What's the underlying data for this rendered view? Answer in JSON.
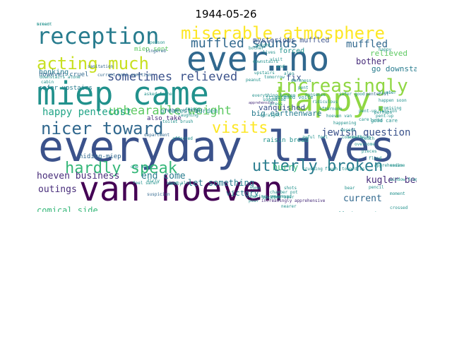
{
  "title": "1944-05-26",
  "colors": {
    "dark_purple": "#440154",
    "purple": "#472c7a",
    "indigo": "#3b528b",
    "blue": "#31688e",
    "teal_blue": "#287c8e",
    "teal": "#21918c",
    "green_teal": "#20a486",
    "green": "#35b779",
    "light_green": "#5ec962",
    "lime": "#90d743",
    "yellow_green": "#c8e020",
    "yellow": "#fde725"
  },
  "words": [
    {
      "text": "everyday lives",
      "color": "indigo"
    },
    {
      "text": "van hoeven",
      "color": "dark_purple"
    },
    {
      "text": "miep came",
      "color": "teal"
    },
    {
      "text": "ever…no",
      "color": "blue"
    },
    {
      "text": "happy.",
      "color": "lime"
    },
    {
      "text": "reception",
      "color": "teal_blue"
    },
    {
      "text": "miserable atmosphere",
      "color": "yellow"
    },
    {
      "text": "acting much",
      "color": "yellow_green"
    },
    {
      "text": "increasingly",
      "color": "lime"
    },
    {
      "text": "nicer toward",
      "color": "blue"
    },
    {
      "text": "visits",
      "color": "yellow"
    },
    {
      "text": "utterly broken",
      "color": "teal_blue"
    },
    {
      "text": "hardly speak",
      "color": "green"
    },
    {
      "text": "muffled sounds",
      "color": "blue"
    },
    {
      "text": "sometimes relieved",
      "color": "indigo"
    },
    {
      "text": "unbearable weight",
      "color": "light_green"
    },
    {
      "text": "happy pentecost",
      "color": "green_teal"
    },
    {
      "text": "jewish question",
      "color": "indigo"
    },
    {
      "text": "hoeven business",
      "color": "purple"
    },
    {
      "text": "end come",
      "color": "teal_blue"
    },
    {
      "text": "hurry",
      "color": "green"
    },
    {
      "text": "kugler bear",
      "color": "purple"
    },
    {
      "text": "current",
      "color": "blue"
    },
    {
      "text": "outings",
      "color": "purple"
    },
    {
      "text": "let something",
      "color": "teal_blue"
    },
    {
      "text": "muffled",
      "color": "blue"
    },
    {
      "text": "mysterious muffled",
      "color": "indigo"
    },
    {
      "text": "fix",
      "color": "indigo"
    },
    {
      "text": "bother",
      "color": "purple"
    },
    {
      "text": "big earthenware",
      "color": "teal_blue"
    },
    {
      "text": "dirty water",
      "color": "teal"
    },
    {
      "text": "comical side",
      "color": "green"
    },
    {
      "text": "raisin",
      "color": "teal"
    },
    {
      "text": "sent us",
      "color": "teal_blue"
    },
    {
      "text": "trickle",
      "color": "light_green"
    },
    {
      "text": "cabarets",
      "color": "light_green"
    },
    {
      "text": "horns",
      "color": "teal_blue"
    },
    {
      "text": "sanitation department",
      "color": "teal_blue"
    },
    {
      "text": "quickly taken",
      "color": "teal"
    },
    {
      "text": "mocking us",
      "color": "teal_blue"
    },
    {
      "text": "go downstairs",
      "color": "teal_blue"
    },
    {
      "text": "relieved",
      "color": "light_green"
    },
    {
      "text": "forced",
      "color": "teal"
    },
    {
      "text": "vanquished",
      "color": "indigo"
    },
    {
      "text": "honking",
      "color": "teal_blue"
    },
    {
      "text": "miep sent",
      "color": "light_green"
    },
    {
      "text": "however cruel",
      "color": "blue"
    },
    {
      "text": "safer upstairs",
      "color": "teal_blue"
    },
    {
      "text": "hiding-miep",
      "color": "blue"
    },
    {
      "text": "victory",
      "color": "teal_blue"
    },
    {
      "text": "also take",
      "color": "purple"
    },
    {
      "text": "greatest burden",
      "color": "teal"
    },
    {
      "text": "raisin bread",
      "color": "teal"
    },
    {
      "text": "good care",
      "color": "teal"
    },
    {
      "text": "pentecost",
      "color": "blue"
    },
    {
      "text": "sanitation",
      "color": "blue"
    },
    {
      "text": "current anti-semitism",
      "color": "blue"
    },
    {
      "text": "lingered",
      "color": "blue"
    },
    {
      "text": "asked father",
      "color": "teal"
    },
    {
      "text": "father straight",
      "color": "blue"
    },
    {
      "text": "toilet brush",
      "color": "teal"
    },
    {
      "text": "department",
      "color": "blue"
    },
    {
      "text": "one hand",
      "color": "teal"
    },
    {
      "text": "feel safer",
      "color": "teal"
    },
    {
      "text": "suspicion",
      "color": "blue"
    },
    {
      "text": "silent house",
      "color": "blue"
    },
    {
      "text": "increasingly apprehensive",
      "color": "purple"
    },
    {
      "text": "apprehension",
      "color": "purple"
    },
    {
      "text": "downstairs alone",
      "color": "teal"
    },
    {
      "text": "cabin",
      "color": "teal"
    },
    {
      "text": "laughing",
      "color": "teal"
    },
    {
      "text": "frightened voice",
      "color": "teal"
    },
    {
      "text": "straw",
      "color": "teal"
    },
    {
      "text": "flushed",
      "color": "teal"
    },
    {
      "text": "beer",
      "color": "teal"
    },
    {
      "text": "nearer",
      "color": "teal"
    },
    {
      "text": "promising",
      "color": "teal"
    },
    {
      "text": "happen soon",
      "color": "teal"
    },
    {
      "text": "plumber",
      "color": "teal"
    },
    {
      "text": "happy",
      "color": "teal"
    },
    {
      "text": "crushing",
      "color": "teal"
    },
    {
      "text": "awful feel",
      "color": "teal"
    },
    {
      "text": "tenth",
      "color": "teal"
    },
    {
      "text": "flush",
      "color": "teal"
    },
    {
      "text": "tomorrow",
      "color": "teal"
    },
    {
      "text": "perhaps",
      "color": "teal"
    },
    {
      "text": "deep also",
      "color": "teal"
    },
    {
      "text": "affected",
      "color": "teal"
    },
    {
      "text": "person",
      "color": "teal"
    },
    {
      "text": "pent-up",
      "color": "teal"
    },
    {
      "text": "pent-up tension",
      "color": "teal"
    },
    {
      "text": "press",
      "color": "teal"
    },
    {
      "text": "even worse",
      "color": "teal"
    },
    {
      "text": "safer",
      "color": "teal"
    },
    {
      "text": "lurks",
      "color": "teal"
    },
    {
      "text": "straight",
      "color": "teal"
    },
    {
      "text": "suggested",
      "color": "teal"
    },
    {
      "text": "sometimes relieved",
      "color": "teal"
    },
    {
      "text": "sewer",
      "color": "teal"
    },
    {
      "text": "chamber pot",
      "color": "teal"
    },
    {
      "text": "mocking",
      "color": "teal"
    },
    {
      "text": "toward us",
      "color": "teal"
    },
    {
      "text": "upstairs",
      "color": "teal"
    },
    {
      "text": "downstairs",
      "color": "teal"
    },
    {
      "text": "peanut",
      "color": "teal"
    },
    {
      "text": "bother",
      "color": "teal"
    },
    {
      "text": "everything happen",
      "color": "teal"
    },
    {
      "text": "come",
      "color": "teal"
    },
    {
      "text": "shots",
      "color": "teal"
    },
    {
      "text": "bear",
      "color": "teal"
    },
    {
      "text": "dirty",
      "color": "teal"
    },
    {
      "text": "hardly",
      "color": "teal"
    },
    {
      "text": "good",
      "color": "teal"
    },
    {
      "text": "care",
      "color": "teal"
    },
    {
      "text": "reason",
      "color": "teal"
    },
    {
      "text": "pencil",
      "color": "teal"
    },
    {
      "text": "pour",
      "color": "teal"
    },
    {
      "text": "apprehensive",
      "color": "teal"
    },
    {
      "text": "concerts",
      "color": "teal"
    },
    {
      "text": "sedan",
      "color": "teal"
    },
    {
      "text": "window frame",
      "color": "teal"
    },
    {
      "text": "moment",
      "color": "teal"
    },
    {
      "text": "crossed",
      "color": "teal"
    },
    {
      "text": "flood",
      "color": "teal"
    },
    {
      "text": "pieces",
      "color": "teal"
    },
    {
      "text": "overcome",
      "color": "teal"
    },
    {
      "text": "something",
      "color": "teal"
    },
    {
      "text": "decent",
      "color": "teal"
    },
    {
      "text": "happening",
      "color": "teal"
    },
    {
      "text": "hoeven van",
      "color": "teal"
    },
    {
      "text": "afternoon",
      "color": "teal"
    },
    {
      "text": "ridiculous",
      "color": "teal"
    },
    {
      "text": "nonsense",
      "color": "teal"
    },
    {
      "text": "pent",
      "color": "teal"
    },
    {
      "text": "darkness",
      "color": "teal"
    },
    {
      "text": "also",
      "color": "teal"
    },
    {
      "text": "end",
      "color": "teal"
    },
    {
      "text": "visit",
      "color": "teal"
    },
    {
      "text": "lives",
      "color": "teal"
    },
    {
      "text": "weight",
      "color": "teal"
    },
    {
      "text": "bread",
      "color": "teal"
    },
    {
      "text": "silent",
      "color": "teal"
    }
  ]
}
